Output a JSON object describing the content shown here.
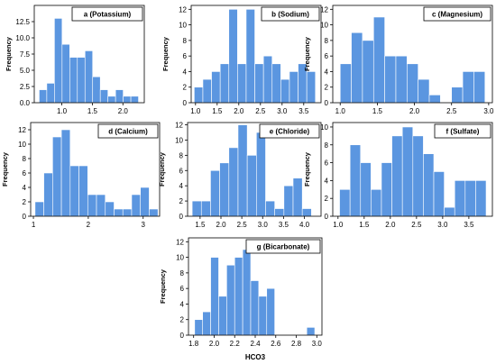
{
  "colors": {
    "bar": "#5b96e0",
    "bar_edge": "#ffffff",
    "axis": "#000000"
  },
  "chart_data": [
    {
      "id": "a",
      "type": "bar",
      "title": "a (Potassium)",
      "ylabel": "Frequency",
      "xlabel": "",
      "xlim": [
        0.55,
        2.35
      ],
      "ylim": [
        0,
        15
      ],
      "bin_width": 0.125,
      "bin_starts": [
        0.63,
        0.755,
        0.88,
        1.005,
        1.13,
        1.255,
        1.38,
        1.505,
        1.63,
        1.755,
        1.88,
        2.005,
        2.13
      ],
      "values": [
        2,
        3,
        13,
        9,
        7,
        7,
        8,
        4,
        2,
        1,
        2,
        1,
        1
      ],
      "xticks": [
        "1.0",
        "1.5",
        "2.0"
      ],
      "xtick_values": [
        1.0,
        1.5,
        2.0
      ],
      "yticks": [
        "0.0",
        "2.5",
        "5.0",
        "7.5",
        "10.0",
        "12.5"
      ],
      "ytick_values": [
        0,
        2.5,
        5,
        7.5,
        10,
        12.5
      ]
    },
    {
      "id": "b",
      "type": "bar",
      "title": "b (Sodium)",
      "ylabel": "Frequency",
      "xlabel": "",
      "xlim": [
        0.9,
        3.9
      ],
      "ylim": [
        0,
        12.5
      ],
      "bin_width": 0.2,
      "bin_starts": [
        0.97,
        1.17,
        1.37,
        1.57,
        1.77,
        1.97,
        2.17,
        2.37,
        2.57,
        2.77,
        2.97,
        3.17,
        3.37,
        3.57
      ],
      "values": [
        2,
        3,
        4,
        5,
        12,
        5,
        12,
        5,
        6,
        5,
        3,
        4,
        5,
        4
      ],
      "xticks": [
        "1.0",
        "1.5",
        "2.0",
        "2.5",
        "3.0",
        "3.5"
      ],
      "xtick_values": [
        1.0,
        1.5,
        2.0,
        2.5,
        3.0,
        3.5
      ],
      "yticks": [
        "0",
        "2",
        "4",
        "6",
        "8",
        "10",
        "12"
      ],
      "ytick_values": [
        0,
        2,
        4,
        6,
        8,
        10,
        12
      ]
    },
    {
      "id": "c",
      "type": "bar",
      "title": "c (Magnesium)",
      "ylabel": "Frequency",
      "xlabel": "",
      "xlim": [
        0.9,
        3.05
      ],
      "ylim": [
        0,
        12.5
      ],
      "bin_width": 0.15,
      "bin_starts": [
        1.0,
        1.15,
        1.3,
        1.45,
        1.6,
        1.75,
        1.9,
        2.05,
        2.2,
        2.35,
        2.5,
        2.65,
        2.8
      ],
      "values": [
        5,
        9,
        8,
        11,
        6,
        6,
        5,
        3,
        1,
        0,
        2,
        4,
        4
      ],
      "xticks": [
        "1.0",
        "1.5",
        "2.0",
        "2.5",
        "3.0"
      ],
      "xtick_values": [
        1.0,
        1.5,
        2.0,
        2.5,
        3.0
      ],
      "yticks": [
        "0",
        "2",
        "4",
        "6",
        "8",
        "10",
        "12"
      ],
      "ytick_values": [
        0,
        2,
        4,
        6,
        8,
        10,
        12
      ]
    },
    {
      "id": "d",
      "type": "bar",
      "title": "d (Calcium)",
      "ylabel": "Frequency",
      "xlabel": "",
      "xlim": [
        0.95,
        3.3
      ],
      "ylim": [
        0,
        13
      ],
      "bin_width": 0.16,
      "bin_starts": [
        1.03,
        1.19,
        1.35,
        1.51,
        1.67,
        1.83,
        1.99,
        2.15,
        2.31,
        2.47,
        2.63,
        2.79,
        2.95,
        3.11
      ],
      "values": [
        2,
        6,
        11,
        12,
        7,
        7,
        3,
        3,
        2,
        1,
        1,
        3,
        4,
        1
      ],
      "xticks": [
        "1",
        "2",
        "3"
      ],
      "xtick_values": [
        1,
        2,
        3
      ],
      "yticks": [
        "0",
        "2",
        "4",
        "6",
        "8",
        "10",
        "12"
      ],
      "ytick_values": [
        0,
        2,
        4,
        6,
        8,
        10,
        12
      ]
    },
    {
      "id": "e",
      "type": "bar",
      "title": "e (Chloride)",
      "ylabel": "Frequency",
      "xlabel": "",
      "xlim": [
        1.2,
        4.4
      ],
      "ylim": [
        0,
        12.3
      ],
      "bin_width": 0.22,
      "bin_starts": [
        1.31,
        1.53,
        1.75,
        1.97,
        2.19,
        2.41,
        2.63,
        2.85,
        3.07,
        3.29,
        3.51,
        3.73,
        3.95
      ],
      "values": [
        2,
        2,
        6,
        7,
        9,
        12,
        8,
        11,
        2,
        1,
        4,
        5,
        1
      ],
      "xticks": [
        "1.5",
        "2.0",
        "2.5",
        "3.0",
        "3.5",
        "4.0"
      ],
      "xtick_values": [
        1.5,
        2.0,
        2.5,
        3.0,
        3.5,
        4.0
      ],
      "yticks": [
        "0",
        "2",
        "4",
        "6",
        "8",
        "10",
        "12"
      ],
      "ytick_values": [
        0,
        2,
        4,
        6,
        8,
        10,
        12
      ]
    },
    {
      "id": "f",
      "type": "bar",
      "title": "f (Sulfate)",
      "ylabel": "Frequency",
      "xlabel": "",
      "xlim": [
        0.9,
        3.95
      ],
      "ylim": [
        0,
        10.5
      ],
      "bin_width": 0.2,
      "bin_starts": [
        1.03,
        1.23,
        1.43,
        1.63,
        1.83,
        2.03,
        2.23,
        2.43,
        2.63,
        2.83,
        3.03,
        3.23,
        3.43,
        3.63
      ],
      "values": [
        3,
        8,
        6,
        3,
        6,
        9,
        10,
        9,
        7,
        5,
        1,
        4,
        4,
        4
      ],
      "xticks": [
        "1.0",
        "1.5",
        "2.0",
        "2.5",
        "3.0",
        "3.5"
      ],
      "xtick_values": [
        1.0,
        1.5,
        2.0,
        2.5,
        3.0,
        3.5
      ],
      "yticks": [
        "0",
        "2",
        "4",
        "6",
        "8",
        "10"
      ],
      "ytick_values": [
        0,
        2,
        4,
        6,
        8,
        10
      ]
    },
    {
      "id": "g",
      "type": "bar",
      "title": "g (Bicarbonate)",
      "ylabel": "Frequency",
      "xlabel": "HCO3",
      "xlim": [
        1.75,
        3.05
      ],
      "ylim": [
        0,
        12.5
      ],
      "bin_width": 0.078,
      "bin_starts": [
        1.81,
        1.888,
        1.966,
        2.044,
        2.122,
        2.2,
        2.278,
        2.356,
        2.434,
        2.512,
        2.59,
        2.668,
        2.746,
        2.824,
        2.902
      ],
      "values": [
        2,
        3,
        10,
        5,
        9,
        10,
        11,
        7,
        5,
        6,
        0,
        0,
        0,
        0,
        1
      ],
      "xticks": [
        "1.8",
        "2.0",
        "2.2",
        "2.4",
        "2.6",
        "2.8",
        "3.0"
      ],
      "xtick_values": [
        1.8,
        2.0,
        2.2,
        2.4,
        2.6,
        2.8,
        3.0
      ],
      "yticks": [
        "0",
        "2",
        "4",
        "6",
        "8",
        "10",
        "12"
      ],
      "ytick_values": [
        0,
        2,
        4,
        6,
        8,
        10,
        12
      ]
    }
  ]
}
